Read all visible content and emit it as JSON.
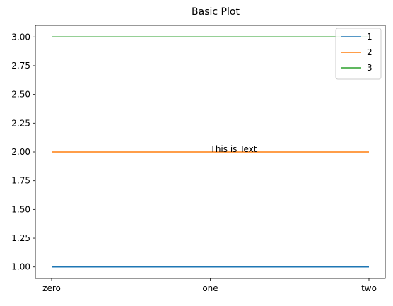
{
  "chart_data": {
    "type": "line",
    "title": "Basic Plot",
    "xlabel": "",
    "ylabel": "",
    "categories": [
      "zero",
      "one",
      "two"
    ],
    "series": [
      {
        "name": "1",
        "values": [
          1,
          1,
          1
        ],
        "color": "#1f77b4"
      },
      {
        "name": "2",
        "values": [
          2,
          2,
          2
        ],
        "color": "#ff7f0e"
      },
      {
        "name": "3",
        "values": [
          3,
          3,
          3
        ],
        "color": "#2ca02c"
      }
    ],
    "ylim": [
      0.9,
      3.1
    ],
    "yticks": [
      "1.00",
      "1.25",
      "1.50",
      "1.75",
      "2.00",
      "2.25",
      "2.50",
      "2.75",
      "3.00"
    ],
    "annotation": {
      "text": "This is Text",
      "x": "one",
      "y": 2.0
    },
    "grid": false,
    "legend_position": "top-right"
  }
}
